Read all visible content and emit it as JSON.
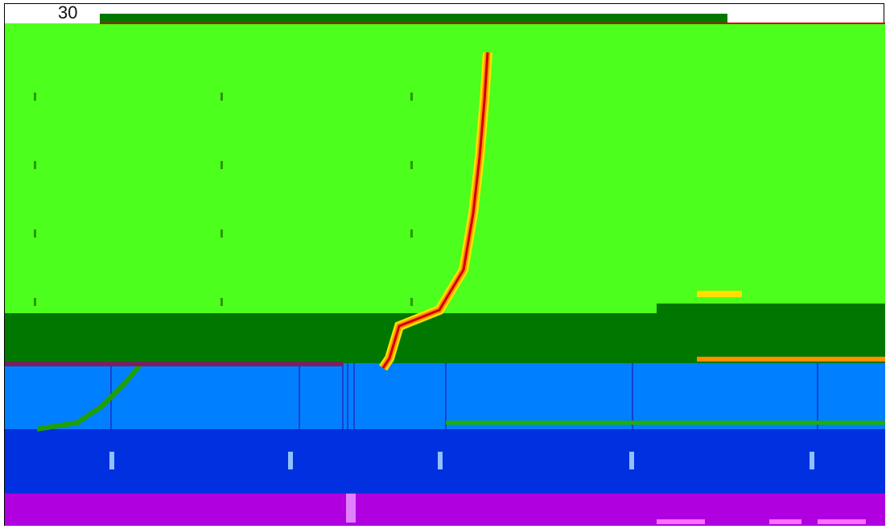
{
  "chart_data": {
    "type": "area",
    "title": "",
    "xlabel": "",
    "ylabel": "",
    "y_tick_labels": [
      "30"
    ],
    "legend": "none",
    "grid": true,
    "colors": {
      "band_top": "#4cff1c",
      "band_dark": "#007800",
      "band_sky": "#0080ff",
      "band_blue": "#0030e0",
      "band_purple": "#b000e0",
      "ribbon_red": "#d00000",
      "ribbon_orange": "#ff9000",
      "ribbon_yellow": "#ffe000",
      "frame": "#000000"
    },
    "x": [
      0,
      1,
      2,
      3,
      4,
      5,
      6,
      7,
      8,
      9,
      10
    ],
    "series": [
      {
        "values": [
          30,
          30,
          30,
          30,
          30,
          30,
          30,
          30,
          30,
          30,
          30
        ]
      },
      {
        "values": [
          12,
          12,
          12,
          12,
          12,
          12,
          14,
          12,
          12,
          12,
          12
        ]
      },
      {
        "values": [
          10,
          10,
          10,
          10,
          10,
          10,
          10,
          10,
          10,
          10,
          10
        ]
      },
      {
        "values": [
          7,
          7,
          7,
          7,
          7,
          7,
          7,
          7,
          7,
          7,
          7
        ]
      },
      {
        "values": [
          4,
          4,
          4,
          4,
          4,
          4,
          4,
          4,
          4,
          4,
          4
        ]
      }
    ],
    "ylim": [
      0,
      30
    ]
  }
}
